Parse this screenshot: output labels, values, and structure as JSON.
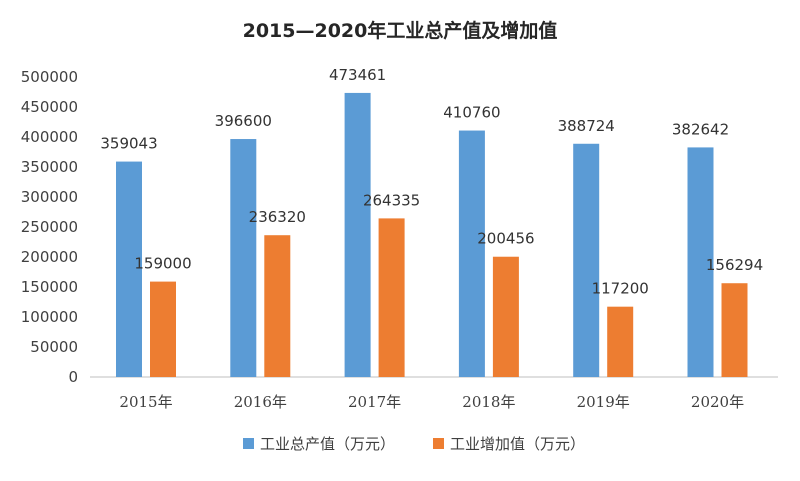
{
  "chart_data": {
    "type": "bar",
    "title": "2015—2020年工业总产值及增加值",
    "categories": [
      "2015年",
      "2016年",
      "2017年",
      "2018年",
      "2019年",
      "2020年"
    ],
    "series": [
      {
        "name": "工业总产值（万元）",
        "color": "#5B9BD5",
        "values": [
          359043,
          396600,
          473461,
          410760,
          388724,
          382642
        ]
      },
      {
        "name": "工业增加值（万元）",
        "color": "#ED7D31",
        "values": [
          159000,
          236320,
          264335,
          200456,
          117200,
          156294
        ]
      }
    ],
    "ylim": [
      0,
      500000
    ],
    "y_ticks": [
      "0",
      "50000",
      "100000",
      "150000",
      "200000",
      "250000",
      "300000",
      "350000",
      "400000",
      "450000",
      "500000"
    ],
    "grid": false,
    "legend_position": "bottom",
    "data_labels": true
  }
}
